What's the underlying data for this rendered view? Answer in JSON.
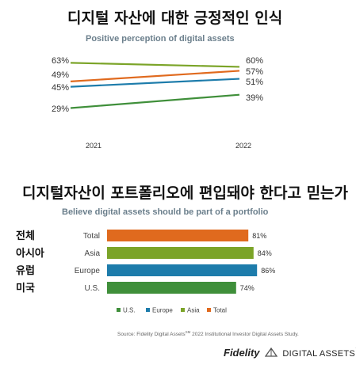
{
  "chart_data": [
    {
      "type": "line",
      "title": "디지털 자산에 대한 긍정적인 인식",
      "subtitle": "Positive perception of digital assets",
      "x": [
        "2021",
        "2022"
      ],
      "series": [
        {
          "color": "#7ba428",
          "values": [
            63,
            60
          ]
        },
        {
          "color": "#e06a1e",
          "values": [
            49,
            57
          ]
        },
        {
          "color": "#1d7cab",
          "values": [
            45,
            51
          ]
        },
        {
          "color": "#3f8f3a",
          "values": [
            29,
            39
          ]
        }
      ],
      "value_labels_left": [
        "63%",
        "49%",
        "45%",
        "29%"
      ],
      "value_labels_right": [
        "60%",
        "57%",
        "51%",
        "39%"
      ]
    },
    {
      "type": "bar",
      "title": "디지털자산이 포트폴리오에 편입돼야 한다고 믿는가",
      "subtitle": "Believe digital assets should be part of a portfolio",
      "categories_ko": [
        "전체",
        "아시아",
        "유럽",
        "미국"
      ],
      "categories": [
        "Total",
        "Asia",
        "Europe",
        "U.S."
      ],
      "values": [
        81,
        84,
        86,
        74
      ],
      "value_labels": [
        "81%",
        "84%",
        "86%",
        "74%"
      ],
      "colors": [
        "#e06a1e",
        "#7ba428",
        "#1d7cab",
        "#3f8f3a"
      ],
      "legend": [
        {
          "name": "U.S.",
          "color": "#3f8f3a"
        },
        {
          "name": "Europe",
          "color": "#1d7cab"
        },
        {
          "name": "Asia",
          "color": "#7ba428"
        },
        {
          "name": "Total",
          "color": "#e06a1e"
        }
      ],
      "legend_position": "bottom"
    }
  ],
  "source": {
    "text_a": "Source: Fidelity Digital Assets",
    "sup": "SM",
    "text_b": " 2022 Institutional Investor Digital Assets Study."
  },
  "logo": {
    "brand": "Fidelity",
    "product": "DIGITAL ASSETS",
    "mark": "™"
  }
}
